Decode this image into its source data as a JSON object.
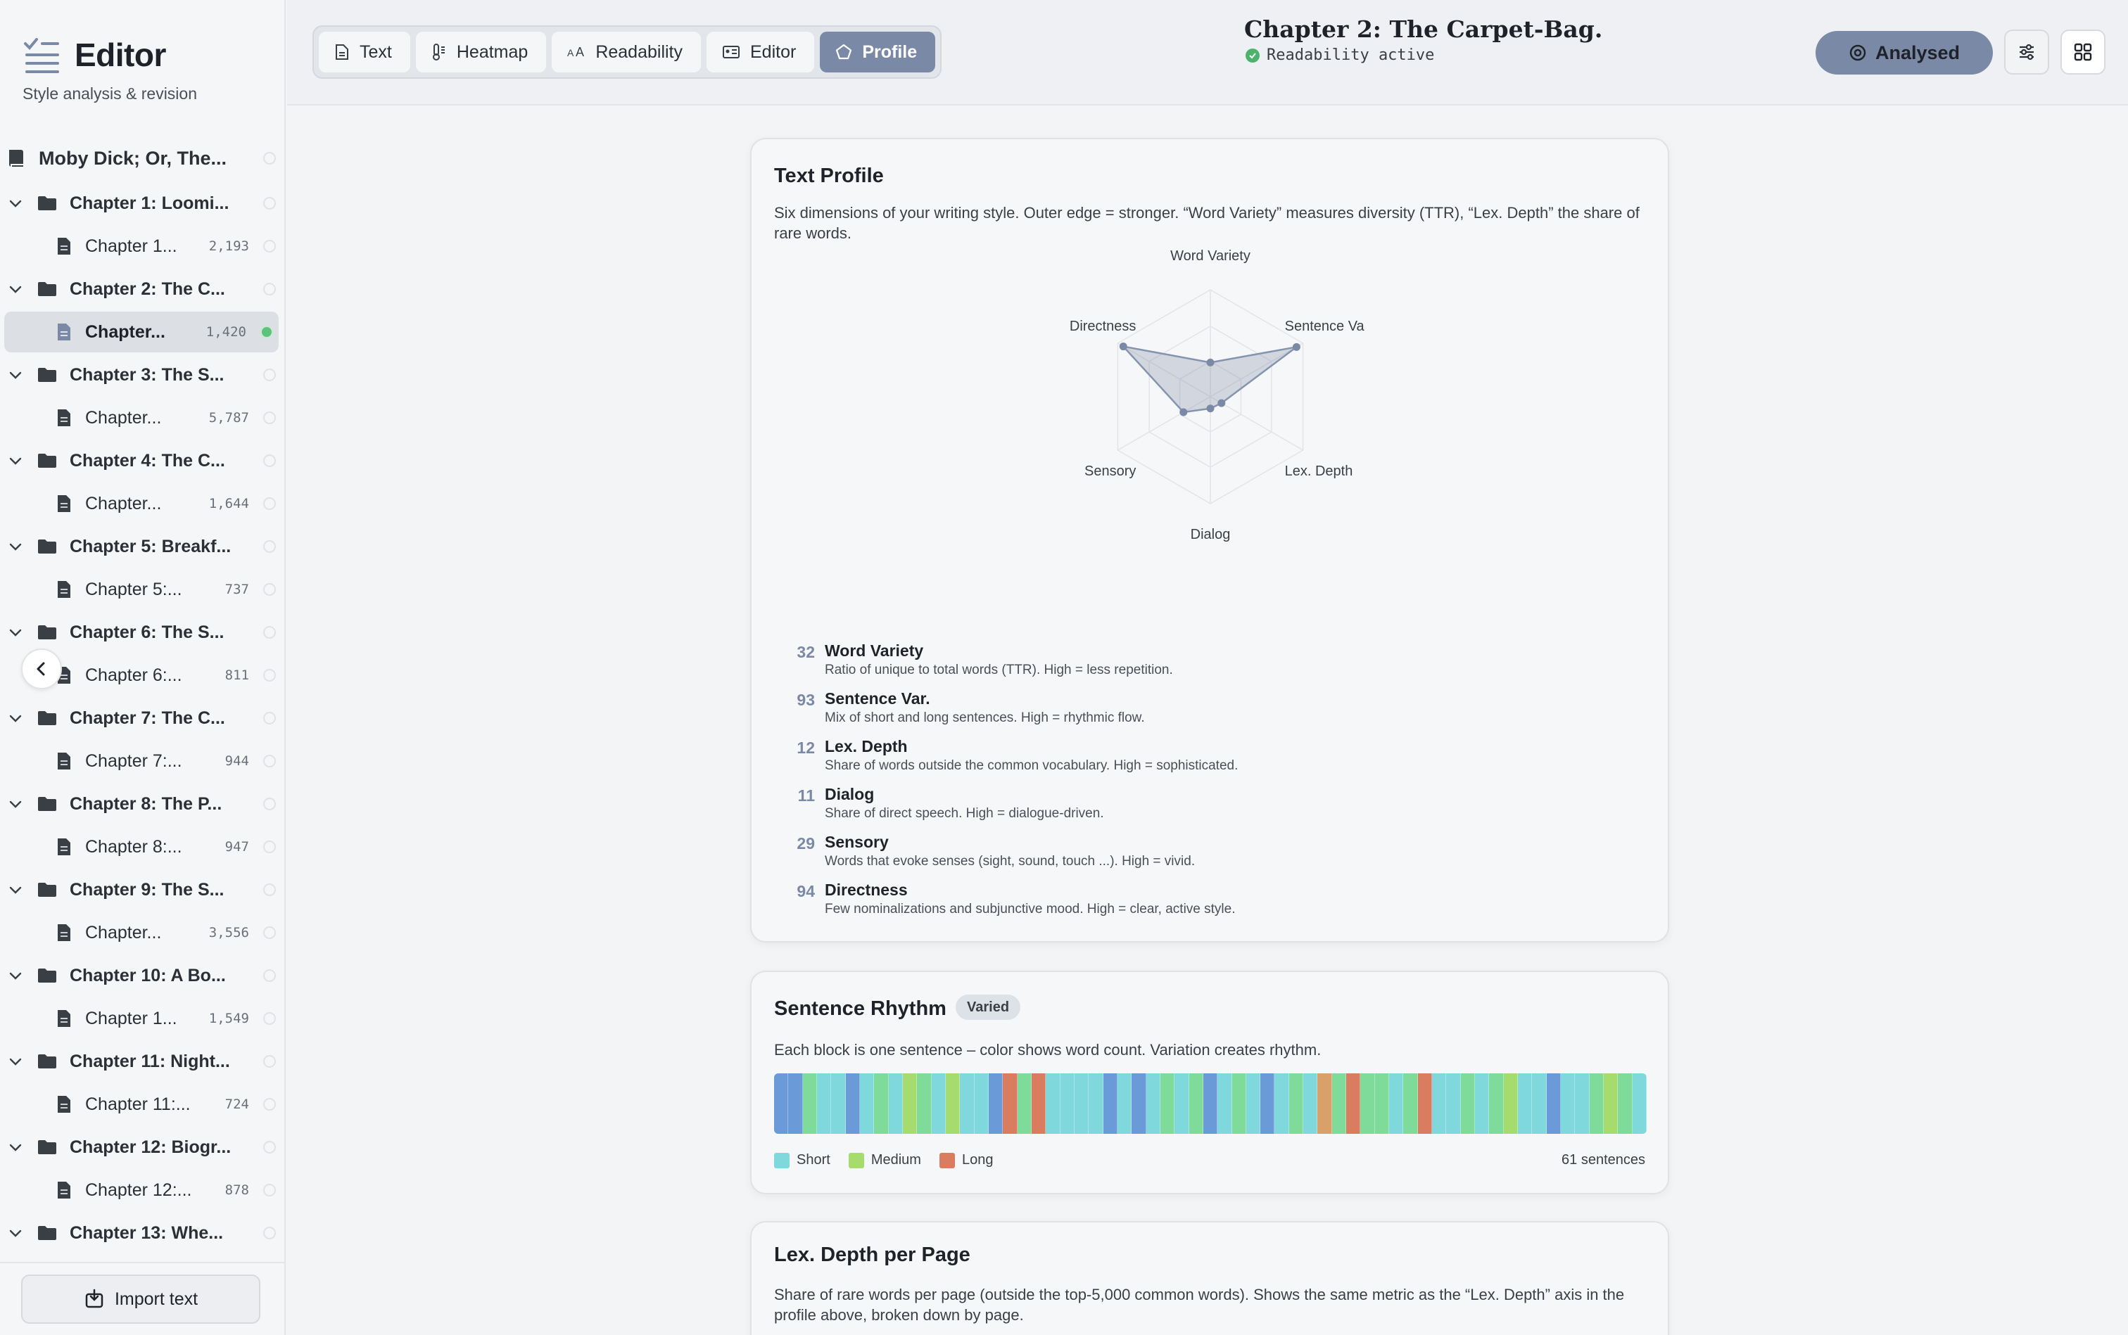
{
  "sidebar": {
    "title": "Editor",
    "subtitle": "Style analysis & revision",
    "book": "Moby Dick; Or, The...",
    "chapters": [
      {
        "folder": "Chapter 1: Loomi...",
        "doc": "Chapter 1...",
        "count": "2,193"
      },
      {
        "folder": "Chapter 2: The C...",
        "doc": "Chapter...",
        "count": "1,420",
        "selected": true
      },
      {
        "folder": "Chapter 3: The S...",
        "doc": "Chapter...",
        "count": "5,787"
      },
      {
        "folder": "Chapter 4: The C...",
        "doc": "Chapter...",
        "count": "1,644"
      },
      {
        "folder": "Chapter 5: Breakf...",
        "doc": "Chapter 5:...",
        "count": "737"
      },
      {
        "folder": "Chapter 6: The S...",
        "doc": "Chapter 6:...",
        "count": "811"
      },
      {
        "folder": "Chapter 7: The C...",
        "doc": "Chapter 7:...",
        "count": "944"
      },
      {
        "folder": "Chapter 8: The P...",
        "doc": "Chapter 8:...",
        "count": "947"
      },
      {
        "folder": "Chapter 9: The S...",
        "doc": "Chapter...",
        "count": "3,556"
      },
      {
        "folder": "Chapter 10: A Bo...",
        "doc": "Chapter 1...",
        "count": "1,549"
      },
      {
        "folder": "Chapter 11: Night...",
        "doc": "Chapter 11:...",
        "count": "724"
      },
      {
        "folder": "Chapter 12: Biogr...",
        "doc": "Chapter 12:...",
        "count": "878"
      },
      {
        "folder": "Chapter 13: Whe...",
        "doc": "",
        "count": ""
      }
    ],
    "import_label": "Import text"
  },
  "header": {
    "tabs": [
      {
        "label": "Text",
        "icon": "document-icon"
      },
      {
        "label": "Heatmap",
        "icon": "thermometer-icon"
      },
      {
        "label": "Readability",
        "icon": "font-size-icon"
      },
      {
        "label": "Editor",
        "icon": "id-card-icon"
      },
      {
        "label": "Profile",
        "icon": "pentagon-icon",
        "active": true
      }
    ],
    "doc_title": "Chapter 2: The Carpet-Bag.",
    "doc_status": "Readability active",
    "analysed_label": "Analysed"
  },
  "colors": {
    "accent": "#7a8aa6",
    "short": "#7fd8dc",
    "medium": "#a6dc6e",
    "long": "#d97c5f",
    "blue": "#6a9ad8",
    "green": "#7edb9a",
    "orange": "#d9a06a"
  },
  "profile": {
    "title": "Text Profile",
    "description": "Six dimensions of your writing style. Outer edge = stronger. “Word Variety” measures diversity (TTR), “Lex. Depth” the share of rare words.",
    "axis_labels": [
      "Word Variety",
      "Sentence Va",
      "Lex. Depth",
      "Dialog",
      "Sensory",
      "Directness"
    ],
    "metrics": [
      {
        "value": "32",
        "name": "Word Variety",
        "desc": "Ratio of unique to total words (TTR). High = less repetition."
      },
      {
        "value": "93",
        "name": "Sentence Var.",
        "desc": "Mix of short and long sentences. High = rhythmic flow."
      },
      {
        "value": "12",
        "name": "Lex. Depth",
        "desc": "Share of words outside the common vocabulary. High = sophisticated."
      },
      {
        "value": "11",
        "name": "Dialog",
        "desc": "Share of direct speech. High = dialogue-driven."
      },
      {
        "value": "29",
        "name": "Sensory",
        "desc": "Words that evoke senses (sight, sound, touch ...). High = vivid."
      },
      {
        "value": "94",
        "name": "Directness",
        "desc": "Few nominalizations and subjunctive mood. High = clear, active style."
      }
    ]
  },
  "chart_data": {
    "type": "radar",
    "axes": [
      "Word Variety",
      "Sentence Va",
      "Lex. Depth",
      "Dialog",
      "Sensory",
      "Directness"
    ],
    "values": [
      32,
      93,
      12,
      11,
      29,
      94
    ],
    "range": [
      0,
      100
    ],
    "grid": true
  },
  "rhythm": {
    "title": "Sentence Rhythm",
    "badge": "Varied",
    "description": "Each block is one sentence – color shows word count. Variation creates rhythm.",
    "legend": [
      "Short",
      "Medium",
      "Long"
    ],
    "count_label": "61 sentences",
    "sentences": [
      "b",
      "b",
      "g",
      "s",
      "s",
      "b",
      "s",
      "g",
      "s",
      "m",
      "g",
      "s",
      "m",
      "s",
      "s",
      "b",
      "l",
      "g",
      "l",
      "s",
      "s",
      "s",
      "s",
      "b",
      "s",
      "b",
      "s",
      "g",
      "s",
      "g",
      "b",
      "s",
      "g",
      "s",
      "b",
      "s",
      "g",
      "s",
      "o",
      "g",
      "l",
      "g",
      "g",
      "s",
      "g",
      "l",
      "s",
      "s",
      "g",
      "s",
      "g",
      "m",
      "s",
      "s",
      "b",
      "s",
      "s",
      "g",
      "m",
      "g",
      "s"
    ]
  },
  "lex": {
    "title": "Lex. Depth per Page",
    "description": "Share of rare words per page (outside the top-5,000 common words). Shows the same metric as the “Lex. Depth” axis in the profile above, broken down by page."
  }
}
